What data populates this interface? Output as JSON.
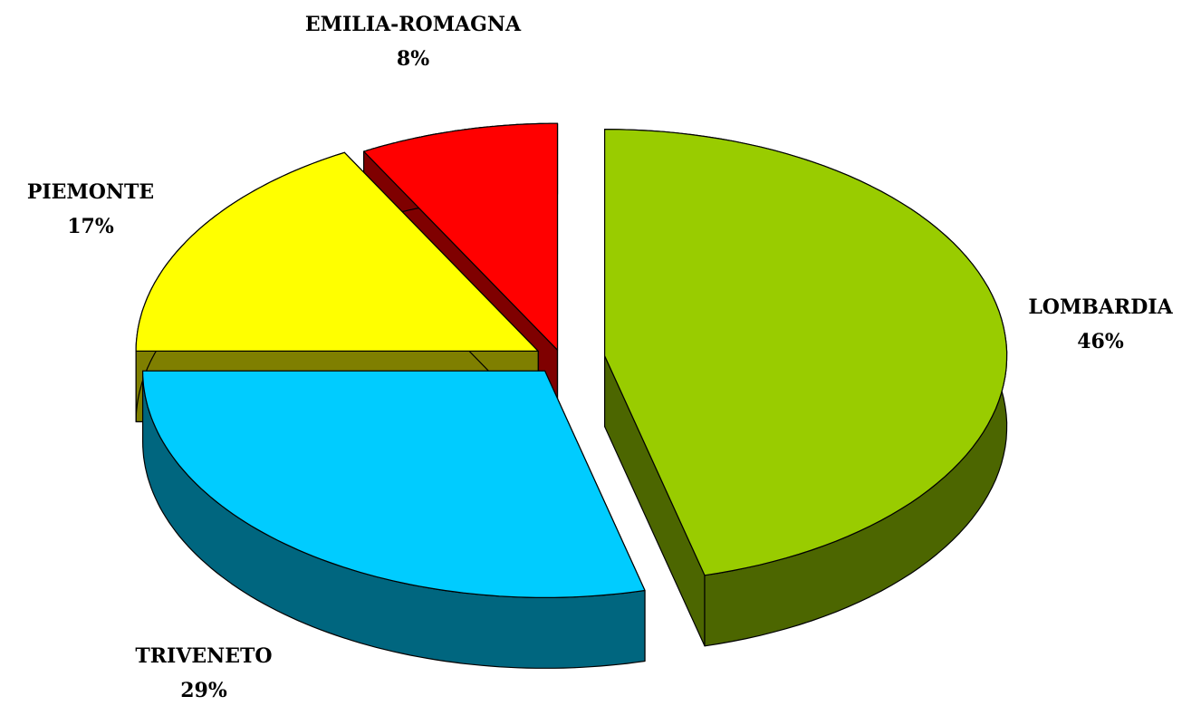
{
  "chart_data": {
    "type": "pie",
    "is_3d": true,
    "categories": [
      "LOMBARDIA",
      "TRIVENETO",
      "PIEMONTE",
      "EMILIA-ROMAGNA"
    ],
    "values": [
      46,
      29,
      17,
      8
    ],
    "value_labels": [
      "46%",
      "29%",
      "17%",
      "8%"
    ],
    "colors": [
      "#99cc00",
      "#00ccff",
      "#ffff00",
      "#ff0000"
    ]
  }
}
